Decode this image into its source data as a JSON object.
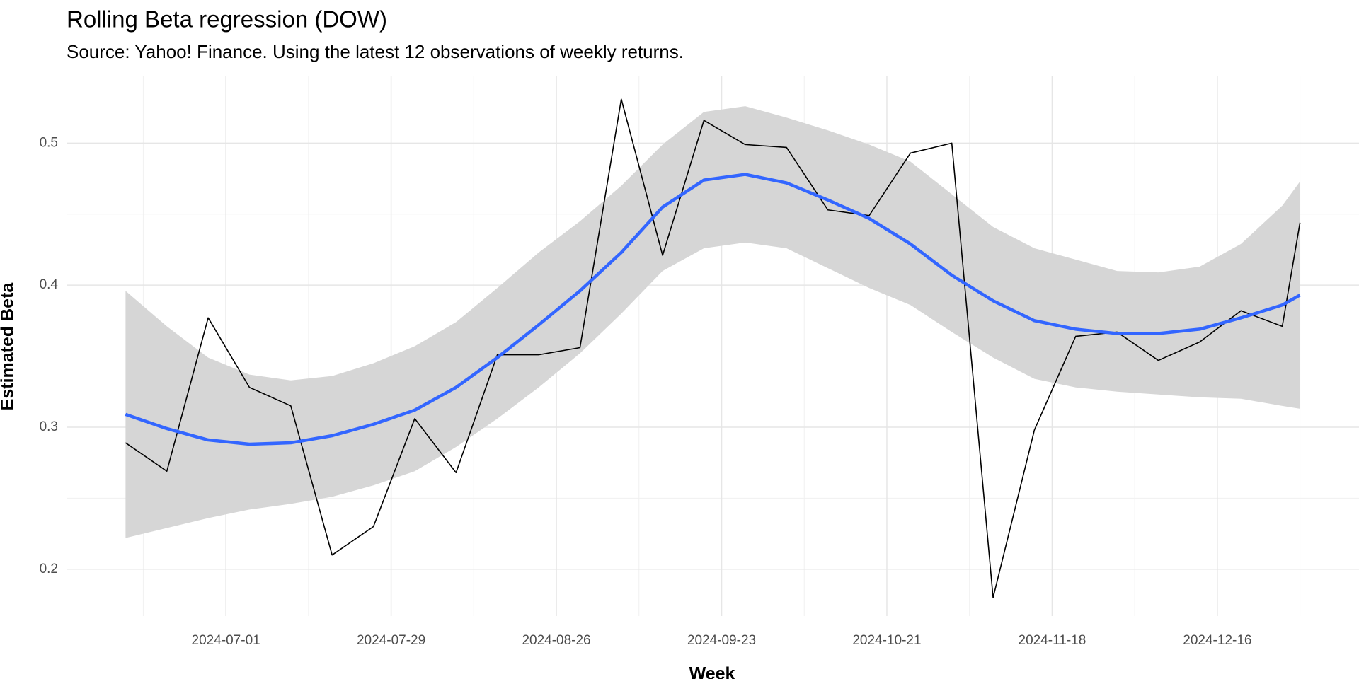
{
  "chart_data": {
    "type": "line",
    "title": "Rolling Beta regression (DOW)",
    "subtitle": "Source: Yahoo! Finance. Using the latest 12 observations of weekly returns.",
    "x_label": "Week",
    "y_label": "Estimated Beta",
    "x": [
      "2024-06-14",
      "2024-06-21",
      "2024-06-28",
      "2024-07-05",
      "2024-07-12",
      "2024-07-19",
      "2024-07-26",
      "2024-08-02",
      "2024-08-09",
      "2024-08-16",
      "2024-08-23",
      "2024-08-30",
      "2024-09-06",
      "2024-09-13",
      "2024-09-20",
      "2024-09-27",
      "2024-10-04",
      "2024-10-11",
      "2024-10-18",
      "2024-10-25",
      "2024-11-01",
      "2024-11-08",
      "2024-11-15",
      "2024-11-22",
      "2024-11-29",
      "2024-12-06",
      "2024-12-13",
      "2024-12-20",
      "2024-12-27",
      "2024-12-30"
    ],
    "series": [
      {
        "color": "#000000",
        "values": [
          0.289,
          0.269,
          0.377,
          0.328,
          0.315,
          0.21,
          0.23,
          0.306,
          0.268,
          0.351,
          0.351,
          0.356,
          0.531,
          0.421,
          0.516,
          0.499,
          0.497,
          0.453,
          0.449,
          0.493,
          0.5,
          0.18,
          0.298,
          0.364,
          0.367,
          0.347,
          0.36,
          0.382,
          0.371,
          0.444
        ]
      }
    ],
    "smooth": {
      "color": "#3366ff",
      "band_color": "#d6d6d6",
      "values": [
        0.309,
        0.299,
        0.291,
        0.288,
        0.289,
        0.294,
        0.302,
        0.312,
        0.328,
        0.349,
        0.372,
        0.396,
        0.423,
        0.455,
        0.474,
        0.478,
        0.472,
        0.46,
        0.447,
        0.429,
        0.407,
        0.389,
        0.375,
        0.369,
        0.366,
        0.366,
        0.369,
        0.377,
        0.386,
        0.393
      ],
      "upper": [
        0.396,
        0.371,
        0.349,
        0.337,
        0.333,
        0.336,
        0.345,
        0.357,
        0.374,
        0.398,
        0.423,
        0.445,
        0.47,
        0.499,
        0.522,
        0.526,
        0.518,
        0.509,
        0.499,
        0.487,
        0.464,
        0.441,
        0.426,
        0.418,
        0.41,
        0.409,
        0.413,
        0.429,
        0.456,
        0.473
      ],
      "lower": [
        0.222,
        0.229,
        0.236,
        0.242,
        0.246,
        0.251,
        0.259,
        0.269,
        0.286,
        0.306,
        0.328,
        0.352,
        0.38,
        0.41,
        0.426,
        0.43,
        0.426,
        0.412,
        0.398,
        0.386,
        0.367,
        0.349,
        0.334,
        0.328,
        0.325,
        0.323,
        0.321,
        0.32,
        0.315,
        0.313
      ]
    },
    "xlim": [
      "2024-06-04",
      "2025-01-09"
    ],
    "xticks": [
      "2024-07-01",
      "2024-07-29",
      "2024-08-26",
      "2024-09-23",
      "2024-10-21",
      "2024-11-18",
      "2024-12-16"
    ],
    "x_minor_ticks": [
      "2024-06-17",
      "2024-07-15",
      "2024-08-12",
      "2024-09-09",
      "2024-10-07",
      "2024-11-04",
      "2024-12-02",
      "2024-12-30"
    ],
    "ylim": [
      0.167,
      0.547
    ],
    "yticks": [
      0.2,
      0.3,
      0.4,
      0.5
    ],
    "y_minor_ticks": [
      0.25,
      0.35,
      0.45
    ],
    "grid": true
  }
}
